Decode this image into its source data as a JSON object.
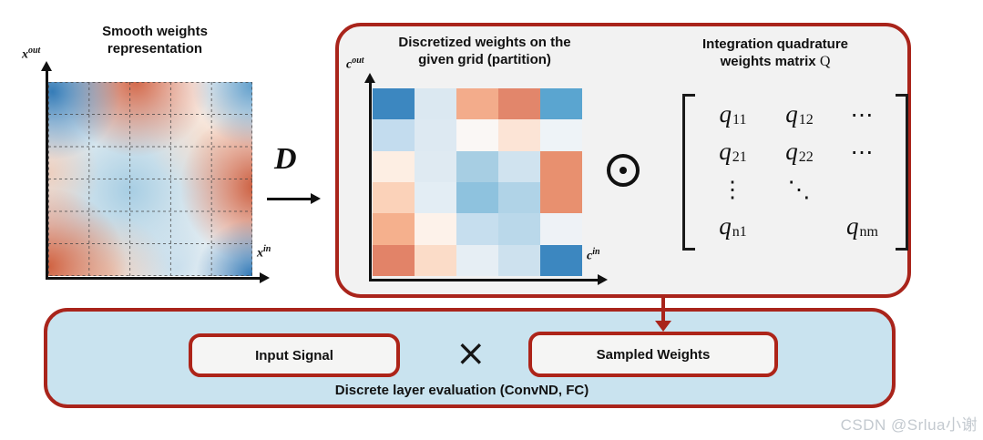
{
  "colors": {
    "box_border_red": "#a9241b",
    "inner_border_red": "#ad2419",
    "big_box_fill": "#f2f2f2",
    "bottom_box_fill": "#c9e3ef",
    "arrow_red": "#a9241b",
    "heatmap_strong_blue": "#2d77b5",
    "heatmap_strong_red": "#cd5936"
  },
  "left_panel": {
    "title": [
      "Smooth weights",
      "representation"
    ],
    "y_label": {
      "base": "x",
      "sup": "out"
    },
    "x_label": {
      "base": "x",
      "sup": "in"
    }
  },
  "d_operator": {
    "symbol": "D",
    "meaning": "discretization-operator"
  },
  "big_box": {
    "disc_title": [
      "Discretized weights on the",
      "given grid (partition)"
    ],
    "y_label": {
      "base": "c",
      "sup": "out"
    },
    "x_label": {
      "base": "c",
      "sup": "in"
    },
    "heatmap_grid": {
      "rows": 6,
      "cols": 5,
      "cell_colors": [
        [
          "#3c87c0",
          "#dbe8f1",
          "#f3ac8b",
          "#e2866b",
          "#5aa5d0"
        ],
        [
          "#c3dcee",
          "#dde9f2",
          "#faf7f5",
          "#fce4d6",
          "#eef3f7"
        ],
        [
          "#fdeee3",
          "#dfeaf2",
          "#a7cee3",
          "#d0e3ef",
          "#e8906f"
        ],
        [
          "#fbd2b9",
          "#e3edf4",
          "#8ec2de",
          "#b0d3e7",
          "#e8906f"
        ],
        [
          "#f5b08d",
          "#fdf2ea",
          "#c6deee",
          "#bad8ea",
          "#eef2f6"
        ],
        [
          "#e28368",
          "#fbdcc8",
          "#e6eef4",
          "#cde1ee",
          "#3c87c0"
        ]
      ]
    },
    "icons": {
      "odot": "⊙"
    },
    "matrix_title": {
      "line1": "Integration quadrature",
      "line2": "weights matrix",
      "symbol": "Q"
    },
    "matrix": {
      "rows": [
        [
          {
            "v": "q",
            "s": "11"
          },
          {
            "v": "q",
            "s": "12"
          },
          {
            "v": "⋯"
          }
        ],
        [
          {
            "v": "q",
            "s": "21"
          },
          {
            "v": "q",
            "s": "22"
          },
          {
            "v": "⋯"
          }
        ],
        [
          {
            "v": "⋮"
          },
          {
            "v": "⋱"
          },
          {
            "v": ""
          }
        ],
        [
          {
            "v": "q",
            "s": "n1"
          },
          {
            "v": ""
          },
          {
            "v": "q",
            "s": "nm"
          }
        ]
      ]
    }
  },
  "bottom_box": {
    "input_signal": "Input Signal",
    "times": "×",
    "sampled_weights": "Sampled Weights",
    "caption": "Discrete layer evaluation (ConvND, FC)"
  },
  "watermark": "CSDN @Srlua小谢"
}
